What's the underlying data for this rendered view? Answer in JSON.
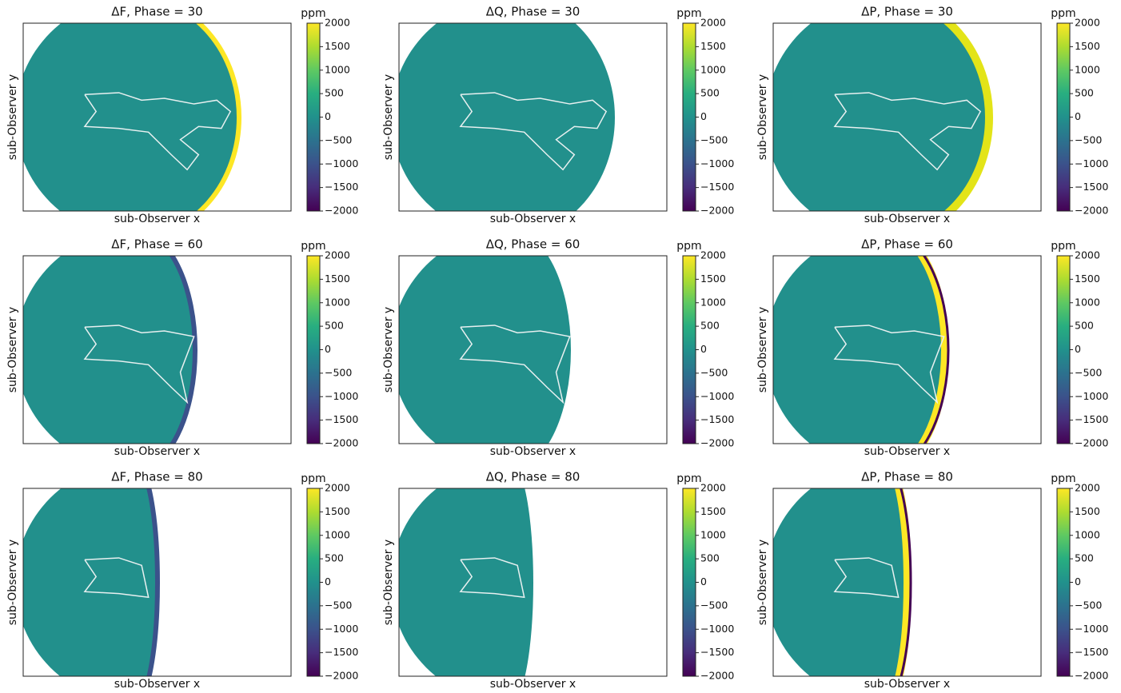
{
  "chart_data": [
    {
      "type": "heatmap",
      "title": "ΔF, Phase = 30",
      "xlabel": "sub-Observer x",
      "ylabel": "sub-Observer y",
      "colorbar_label": "ppm",
      "clim": [
        -2000,
        2000
      ],
      "cticks": [
        {
          "value": -2000,
          "label": "−2000"
        },
        {
          "value": -1500,
          "label": "−1500"
        },
        {
          "value": -1000,
          "label": "−1000"
        },
        {
          "value": -500,
          "label": "−500"
        },
        0,
        500,
        1000,
        1500,
        2000
      ]
    },
    {
      "type": "heatmap",
      "title": "ΔQ, Phase = 30",
      "xlabel": "sub-Observer x",
      "ylabel": "sub-Observer y",
      "colorbar_label": "ppm",
      "clim": [
        -2000,
        2000
      ],
      "cticks": [
        {
          "value": -2000,
          "label": "−2000"
        },
        {
          "value": -1500,
          "label": "−1500"
        },
        {
          "value": -1000,
          "label": "−1000"
        },
        {
          "value": -500,
          "label": "−500"
        },
        0,
        500,
        1000,
        1500,
        2000
      ]
    },
    {
      "type": "heatmap",
      "title": "ΔP, Phase = 30",
      "xlabel": "sub-Observer x",
      "ylabel": "sub-Observer y",
      "colorbar_label": "ppm",
      "clim": [
        -2000,
        2000
      ],
      "cticks": [
        {
          "value": -2000,
          "label": "−2000"
        },
        {
          "value": -1500,
          "label": "−1500"
        },
        {
          "value": -1000,
          "label": "−1000"
        },
        {
          "value": -500,
          "label": "−500"
        },
        0,
        500,
        1000,
        1500,
        2000
      ]
    },
    {
      "type": "heatmap",
      "title": "ΔF, Phase = 60",
      "xlabel": "sub-Observer x",
      "ylabel": "sub-Observer y",
      "colorbar_label": "ppm",
      "clim": [
        -2000,
        2000
      ],
      "cticks": [
        {
          "value": -2000,
          "label": "−2000"
        },
        {
          "value": -1500,
          "label": "−1500"
        },
        {
          "value": -1000,
          "label": "−1000"
        },
        {
          "value": -500,
          "label": "−500"
        },
        0,
        500,
        1000,
        1500,
        2000
      ]
    },
    {
      "type": "heatmap",
      "title": "ΔQ, Phase = 60",
      "xlabel": "sub-Observer x",
      "ylabel": "sub-Observer y",
      "colorbar_label": "ppm",
      "clim": [
        -2000,
        2000
      ],
      "cticks": [
        {
          "value": -2000,
          "label": "−2000"
        },
        {
          "value": -1500,
          "label": "−1500"
        },
        {
          "value": -1000,
          "label": "−1000"
        },
        {
          "value": -500,
          "label": "−500"
        },
        0,
        500,
        1000,
        1500,
        2000
      ]
    },
    {
      "type": "heatmap",
      "title": "ΔP, Phase = 60",
      "xlabel": "sub-Observer x",
      "ylabel": "sub-Observer y",
      "colorbar_label": "ppm",
      "clim": [
        -2000,
        2000
      ],
      "cticks": [
        {
          "value": -2000,
          "label": "−2000"
        },
        {
          "value": -1500,
          "label": "−1500"
        },
        {
          "value": -1000,
          "label": "−1000"
        },
        {
          "value": -500,
          "label": "−500"
        },
        0,
        500,
        1000,
        1500,
        2000
      ]
    },
    {
      "type": "heatmap",
      "title": "ΔF, Phase = 80",
      "xlabel": "sub-Observer x",
      "ylabel": "sub-Observer y",
      "colorbar_label": "ppm",
      "clim": [
        -2000,
        2000
      ],
      "cticks": [
        {
          "value": -2000,
          "label": "−2000"
        },
        {
          "value": -1500,
          "label": "−1500"
        },
        {
          "value": -1000,
          "label": "−1000"
        },
        {
          "value": -500,
          "label": "−500"
        },
        0,
        500,
        1000,
        1500,
        2000
      ]
    },
    {
      "type": "heatmap",
      "title": "ΔQ, Phase = 80",
      "xlabel": "sub-Observer x",
      "ylabel": "sub-Observer y",
      "colorbar_label": "ppm",
      "clim": [
        -2000,
        2000
      ],
      "cticks": [
        {
          "value": -2000,
          "label": "−2000"
        },
        {
          "value": -1500,
          "label": "−1500"
        },
        {
          "value": -1000,
          "label": "−1000"
        },
        {
          "value": -500,
          "label": "−500"
        },
        0,
        500,
        1000,
        1500,
        2000
      ]
    },
    {
      "type": "heatmap",
      "title": "ΔP, Phase = 80",
      "xlabel": "sub-Observer x",
      "ylabel": "sub-Observer y",
      "colorbar_label": "ppm",
      "clim": [
        -2000,
        2000
      ],
      "cticks": [
        {
          "value": -2000,
          "label": "−2000"
        },
        {
          "value": -1500,
          "label": "−1500"
        },
        {
          "value": -1000,
          "label": "−1000"
        },
        {
          "value": -500,
          "label": "−500"
        },
        0,
        500,
        1000,
        1500,
        2000
      ]
    }
  ]
}
